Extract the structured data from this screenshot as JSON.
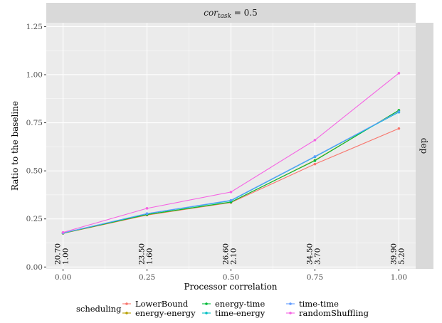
{
  "chart_data": {
    "type": "line",
    "facet_top": "cor",
    "facet_top_sub": "task",
    "facet_top_value": " = 0.5",
    "facet_right": "dep",
    "xlabel": "Processor correlation",
    "ylabel": "Ratio to the baseline",
    "x": [
      0.0,
      0.25,
      0.5,
      0.75,
      1.0
    ],
    "x_tick_labels": [
      "0.00",
      "0.25",
      "0.50",
      "0.75",
      "1.00"
    ],
    "y_tick_labels": [
      "0.00",
      "0.25",
      "0.50",
      "0.75",
      "1.00",
      "1.25"
    ],
    "xlim": [
      -0.05,
      1.05
    ],
    "ylim": [
      -0.01,
      1.27
    ],
    "grid": true,
    "legend": {
      "title": "scheduling",
      "position": "bottom"
    },
    "series": [
      {
        "name": "LowerBound",
        "color": "#F8766D",
        "values": [
          0.175,
          0.27,
          0.335,
          0.535,
          0.72
        ]
      },
      {
        "name": "energy-energy",
        "color": "#B79F00",
        "values": [
          0.175,
          0.272,
          0.337,
          0.555,
          0.815
        ]
      },
      {
        "name": "energy-time",
        "color": "#00BA38",
        "values": [
          0.176,
          0.273,
          0.338,
          0.553,
          0.815
        ]
      },
      {
        "name": "time-energy",
        "color": "#00BFC4",
        "values": [
          0.177,
          0.277,
          0.345,
          0.573,
          0.805
        ]
      },
      {
        "name": "time-time",
        "color": "#619CFF",
        "values": [
          0.177,
          0.278,
          0.347,
          0.575,
          0.808
        ]
      },
      {
        "name": "randomShuffling",
        "color": "#F564E3",
        "values": [
          0.18,
          0.305,
          0.39,
          0.66,
          1.008
        ]
      }
    ],
    "annotations": [
      {
        "x": 0.0,
        "lines": [
          "20.70",
          "1.00"
        ]
      },
      {
        "x": 0.25,
        "lines": [
          "23.50",
          "1.60"
        ]
      },
      {
        "x": 0.5,
        "lines": [
          "26.60",
          "2.10"
        ]
      },
      {
        "x": 0.75,
        "lines": [
          "34.50",
          "3.70"
        ]
      },
      {
        "x": 1.0,
        "lines": [
          "39.90",
          "5.20"
        ]
      }
    ]
  }
}
